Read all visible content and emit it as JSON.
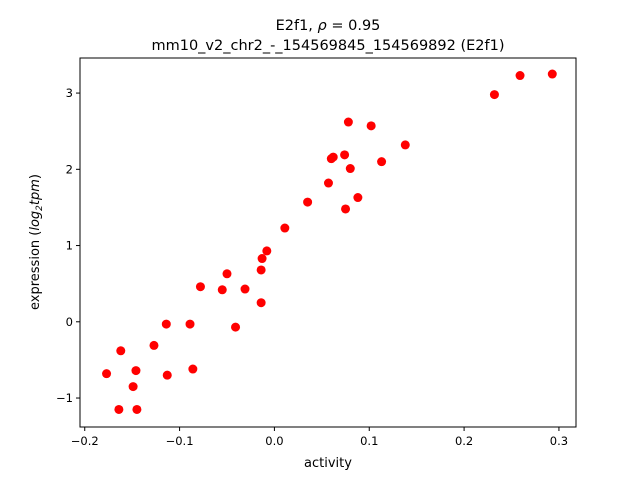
{
  "chart_data": {
    "type": "scatter",
    "title_line1_prefix": "E2f1, ",
    "title_rho_symbol": "ρ",
    "title_rho_value": " = 0.95",
    "title_line2": "mm10_v2_chr2_-_154569845_154569892 (E2f1)",
    "xlabel": "activity",
    "ylabel_prefix": "expression (",
    "ylabel_italic": "log",
    "ylabel_sub": "2",
    "ylabel_italic2": "tpm",
    "ylabel_suffix": ")",
    "xlim": [
      -0.205,
      0.318
    ],
    "ylim": [
      -1.38,
      3.46
    ],
    "xticks": [
      -0.2,
      -0.1,
      0.0,
      0.1,
      0.2,
      0.3
    ],
    "xtick_labels": [
      "−0.2",
      "−0.1",
      "0.0",
      "0.1",
      "0.2",
      "0.3"
    ],
    "yticks": [
      -1,
      0,
      1,
      2,
      3
    ],
    "ytick_labels": [
      "−1",
      "0",
      "1",
      "2",
      "3"
    ],
    "grid": false,
    "marker_color": "#ff0000",
    "points": [
      [
        -0.177,
        -0.68
      ],
      [
        -0.162,
        -0.38
      ],
      [
        -0.164,
        -1.15
      ],
      [
        -0.146,
        -0.64
      ],
      [
        -0.149,
        -0.85
      ],
      [
        -0.145,
        -1.15
      ],
      [
        -0.127,
        -0.31
      ],
      [
        -0.114,
        -0.03
      ],
      [
        -0.113,
        -0.7
      ],
      [
        -0.089,
        -0.03
      ],
      [
        -0.086,
        -0.62
      ],
      [
        -0.078,
        0.46
      ],
      [
        -0.055,
        0.42
      ],
      [
        -0.05,
        0.63
      ],
      [
        -0.041,
        -0.07
      ],
      [
        -0.031,
        0.43
      ],
      [
        -0.014,
        0.25
      ],
      [
        -0.014,
        0.68
      ],
      [
        -0.013,
        0.83
      ],
      [
        -0.008,
        0.93
      ],
      [
        0.011,
        1.23
      ],
      [
        0.035,
        1.57
      ],
      [
        0.057,
        1.82
      ],
      [
        0.06,
        2.14
      ],
      [
        0.062,
        2.16
      ],
      [
        0.074,
        2.19
      ],
      [
        0.075,
        1.48
      ],
      [
        0.078,
        2.62
      ],
      [
        0.08,
        2.01
      ],
      [
        0.088,
        1.63
      ],
      [
        0.102,
        2.57
      ],
      [
        0.113,
        2.1
      ],
      [
        0.138,
        2.32
      ],
      [
        0.232,
        2.98
      ],
      [
        0.259,
        3.23
      ],
      [
        0.293,
        3.25
      ]
    ]
  }
}
